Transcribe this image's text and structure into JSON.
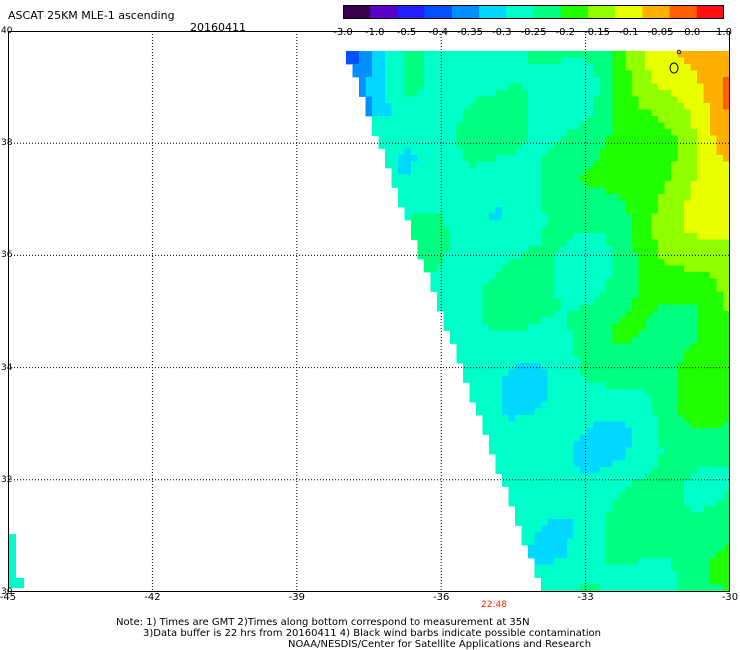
{
  "header": {
    "title": "ASCAT 25KM MLE-1 ascending",
    "date": "20160411"
  },
  "colorbar": {
    "labels": [
      "-3.0",
      "-1.0",
      "-0.5",
      "-0.4",
      "-0.35",
      "-0.3",
      "-0.25",
      "-0.2",
      "-0.15",
      "-0.1",
      "-0.05",
      "0.0",
      "1.0"
    ],
    "colors": [
      "#3a0050",
      "#5a00c8",
      "#2020ff",
      "#0050ff",
      "#0090ff",
      "#00d8ff",
      "#00ffc8",
      "#00ff80",
      "#20ff00",
      "#90ff00",
      "#e8ff00",
      "#ffb000",
      "#ff6000",
      "#ff1010"
    ]
  },
  "map": {
    "lat_labels": [
      "40",
      "38",
      "36",
      "34",
      "32",
      "30"
    ],
    "lon_labels": [
      "-45",
      "-42",
      "-39",
      "-36",
      "-33",
      "-30"
    ],
    "time_label": "22:48",
    "extent": {
      "lon_min": -45,
      "lon_max": -30,
      "lat_min": 30,
      "lat_max": 40
    }
  },
  "notes": {
    "line1": "Note: 1) Times are GMT 2)Times along bottom correspond to measurement at 35N",
    "line2": "3)Data buffer is 22 hrs from 20160411 4) Black wind barbs indicate possible contamination",
    "line3": "NOAA/NESDIS/Center for Satellite Applications and Research"
  }
}
